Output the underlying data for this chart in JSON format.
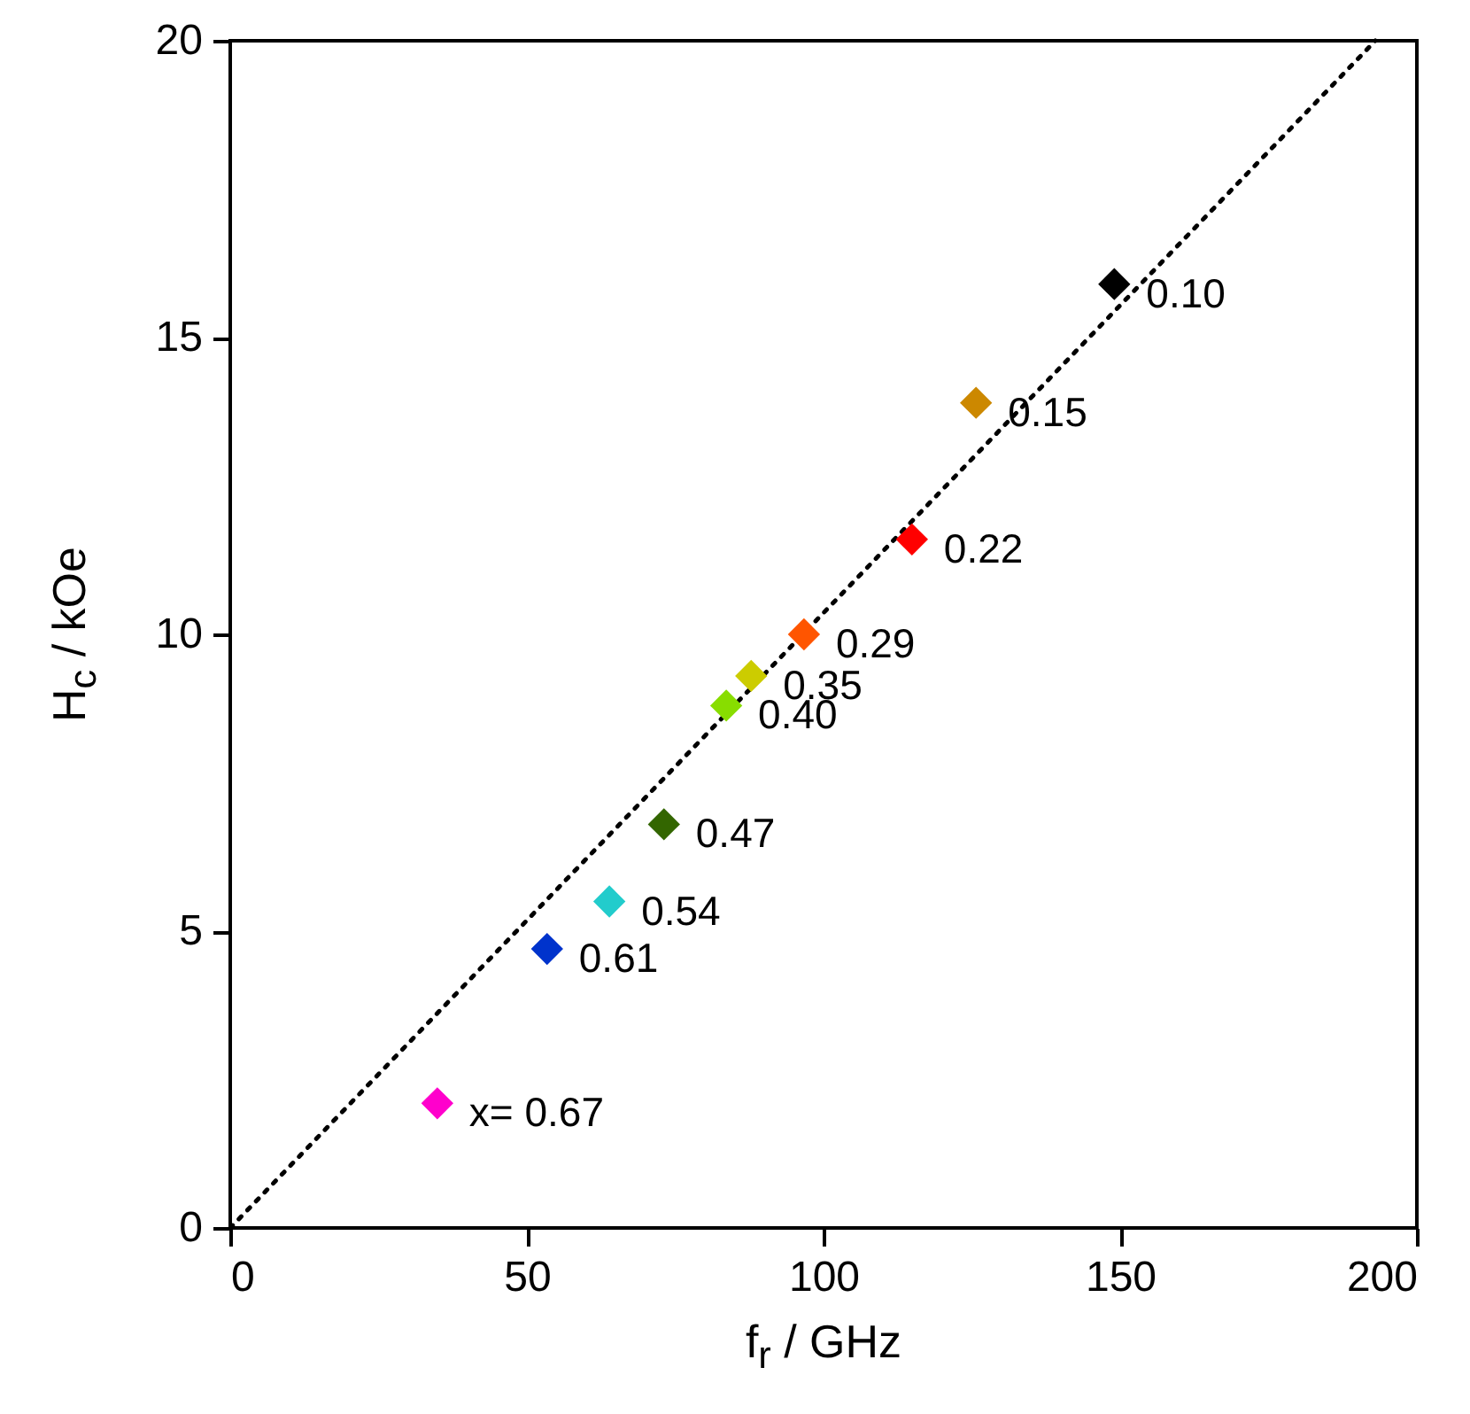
{
  "chart_data": {
    "type": "scatter",
    "xlabel": "f$_{r}$ / GHz",
    "ylabel": "H$_{c}$ / kOe",
    "xlim": [
      0,
      200
    ],
    "ylim": [
      0,
      20
    ],
    "xticks": [
      0,
      50,
      100,
      150,
      200
    ],
    "yticks": [
      0,
      5,
      10,
      15,
      20
    ],
    "grid": false,
    "legend": false,
    "series": [
      {
        "type": "scatter",
        "marker": "diamond",
        "x": [
          149,
          125.7,
          114.9,
          96.7,
          87.8,
          83.6,
          73.1,
          63.9,
          53.4,
          34.9
        ],
        "values": [
          15.9,
          13.9,
          11.6,
          10.0,
          9.3,
          8.8,
          6.8,
          5.5,
          4.7,
          2.1
        ],
        "colors": [
          "#000000",
          "#cc8800",
          "#ff0000",
          "#ff5500",
          "#cccc00",
          "#88dd00",
          "#336600",
          "#22cccc",
          "#0033cc",
          "#ff00cc"
        ]
      },
      {
        "type": "line",
        "x": [
          0,
          193
        ],
        "values": [
          0,
          20
        ],
        "color": "#000000",
        "line_style": "dotted"
      }
    ],
    "annotations": [
      {
        "text": "0.10",
        "x": 149,
        "y": 15.9
      },
      {
        "text": "0.15",
        "x": 125.7,
        "y": 13.9
      },
      {
        "text": "0.22",
        "x": 114.9,
        "y": 11.6
      },
      {
        "text": "0.29",
        "x": 96.7,
        "y": 10.0
      },
      {
        "text": "0.35",
        "x": 87.8,
        "y": 9.3
      },
      {
        "text": "0.40",
        "x": 83.6,
        "y": 8.8
      },
      {
        "text": "0.47",
        "x": 73.1,
        "y": 6.8
      },
      {
        "text": "0.54",
        "x": 63.9,
        "y": 5.5
      },
      {
        "text": "0.61",
        "x": 53.4,
        "y": 4.7
      },
      {
        "text": "x= 0.67",
        "x": 34.9,
        "y": 2.1
      }
    ]
  }
}
